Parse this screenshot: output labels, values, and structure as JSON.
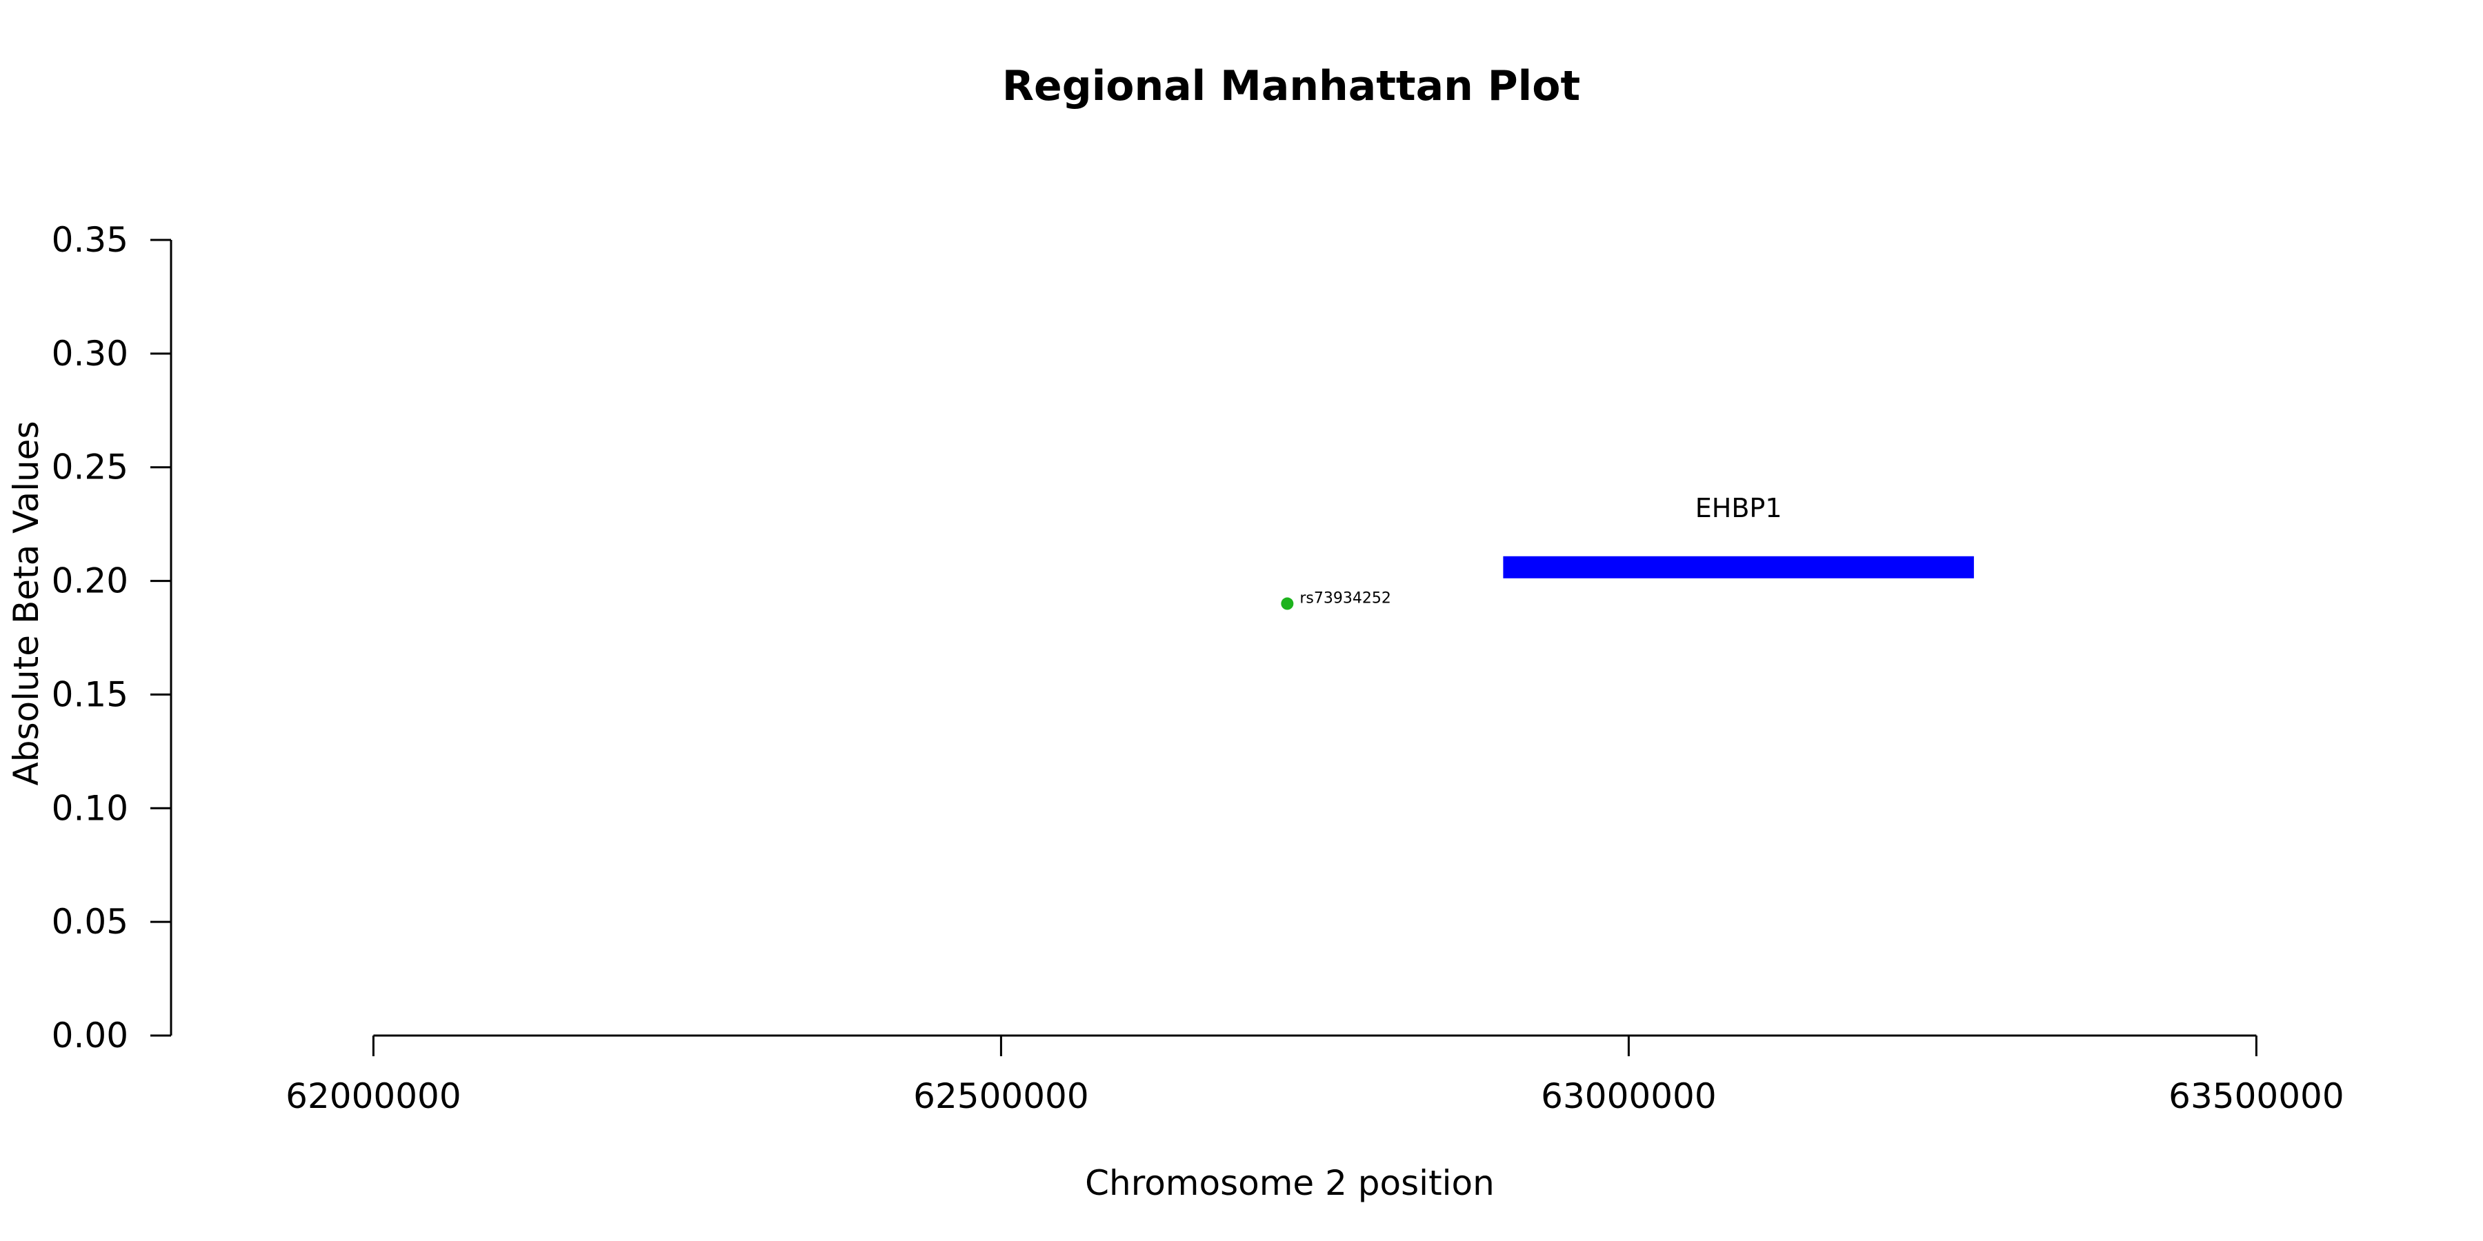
{
  "chart_data": {
    "type": "scatter",
    "title": "Regional Manhattan Plot",
    "xlabel": "Chromosome 2 position",
    "ylabel": "Absolute Beta Values",
    "xlim": [
      61730000,
      63730000
    ],
    "ylim": [
      0,
      0.35
    ],
    "x_ticks": [
      62000000,
      62500000,
      63000000,
      63500000
    ],
    "y_ticks": [
      0.0,
      0.05,
      0.1,
      0.15,
      0.2,
      0.25,
      0.3,
      0.35
    ],
    "y_tick_labels": [
      "0.00",
      "0.05",
      "0.10",
      "0.15",
      "0.20",
      "0.25",
      "0.30",
      "0.35"
    ],
    "grid": false,
    "points": [
      {
        "x": 62728000,
        "y": 0.19,
        "label": "rs73934252",
        "color": "#1db31d"
      }
    ],
    "genes": [
      {
        "name": "EHBP1",
        "start": 62900000,
        "end": 63275000,
        "y": 0.206,
        "color": "#0000ff"
      }
    ]
  }
}
